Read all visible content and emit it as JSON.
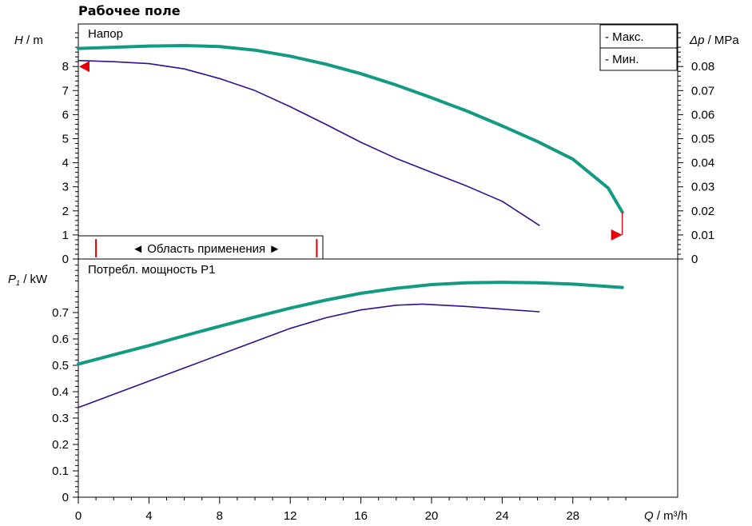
{
  "page_title": "Рабочее поле",
  "colors": {
    "max": "#129a82",
    "min": "#2e1090",
    "marker": "#e8000b",
    "axis": "#000000"
  },
  "legend": {
    "max_label": "- Макс.",
    "min_label": "- Мин."
  },
  "chart_data": [
    {
      "type": "line",
      "title": "Напор",
      "ylabel_symbol": "H",
      "ylabel_unit": " / m",
      "y2label_symbol": "Δp",
      "y2label_unit": " / MPa",
      "xlim": [
        0,
        32.5
      ],
      "ylim": [
        0,
        9.6
      ],
      "y2lim": [
        0,
        0.096
      ],
      "y_ticks": [
        "0",
        "1",
        "2",
        "3",
        "4",
        "5",
        "6",
        "7",
        "8"
      ],
      "y2_ticks": [
        "0",
        "0.01",
        "0.02",
        "0.03",
        "0.04",
        "0.05",
        "0.06",
        "0.07",
        "0.08"
      ],
      "series": [
        {
          "name": "Макс.",
          "x": [
            0,
            2,
            4,
            6,
            8,
            10,
            12,
            14,
            16,
            18,
            20,
            22,
            24,
            26,
            28,
            30,
            30.8
          ],
          "values": [
            8.75,
            8.8,
            8.85,
            8.87,
            8.83,
            8.68,
            8.43,
            8.1,
            7.7,
            7.23,
            6.7,
            6.15,
            5.53,
            4.88,
            4.15,
            2.95,
            1.95
          ]
        },
        {
          "name": "Мин.",
          "x": [
            0,
            2,
            4,
            6,
            8,
            10,
            12,
            14,
            16,
            18,
            20,
            22,
            24,
            26.1
          ],
          "values": [
            8.25,
            8.2,
            8.12,
            7.9,
            7.5,
            7.0,
            6.33,
            5.6,
            4.85,
            4.18,
            3.6,
            3.03,
            2.4,
            1.4
          ]
        }
      ],
      "range_label": "Область применения",
      "range_x": [
        1,
        13.5
      ],
      "marker_y": 8.0,
      "max_q": 30.8,
      "max_q_y": [
        1,
        1.95
      ]
    },
    {
      "type": "line",
      "title": "Потребл. мощность P1",
      "ylabel_symbol": "P",
      "ylabel_sub": "1",
      "ylabel_unit": " / kW",
      "xlabel_symbol": "Q",
      "xlabel_unit": " / m³/h",
      "xlim": [
        0,
        32.5
      ],
      "ylim": [
        0,
        0.92
      ],
      "y_ticks": [
        "0",
        "0.1",
        "0.2",
        "0.3",
        "0.4",
        "0.5",
        "0.6",
        "0.7"
      ],
      "x_ticks": [
        "0",
        "4",
        "8",
        "12",
        "16",
        "20",
        "24",
        "28"
      ],
      "series": [
        {
          "name": "Макс.",
          "x": [
            0,
            2,
            4,
            6,
            8,
            10,
            12,
            14,
            16,
            18,
            20,
            22,
            24,
            26,
            28,
            30.8
          ],
          "values": [
            0.505,
            0.54,
            0.575,
            0.612,
            0.648,
            0.683,
            0.717,
            0.747,
            0.773,
            0.792,
            0.806,
            0.813,
            0.815,
            0.813,
            0.808,
            0.795
          ]
        },
        {
          "name": "Мин.",
          "x": [
            0,
            2,
            4,
            6,
            8,
            10,
            12,
            14,
            16,
            18,
            19.5,
            22,
            24,
            26.1
          ],
          "values": [
            0.34,
            0.39,
            0.44,
            0.49,
            0.54,
            0.59,
            0.64,
            0.68,
            0.71,
            0.728,
            0.732,
            0.723,
            0.713,
            0.703
          ]
        }
      ]
    }
  ]
}
